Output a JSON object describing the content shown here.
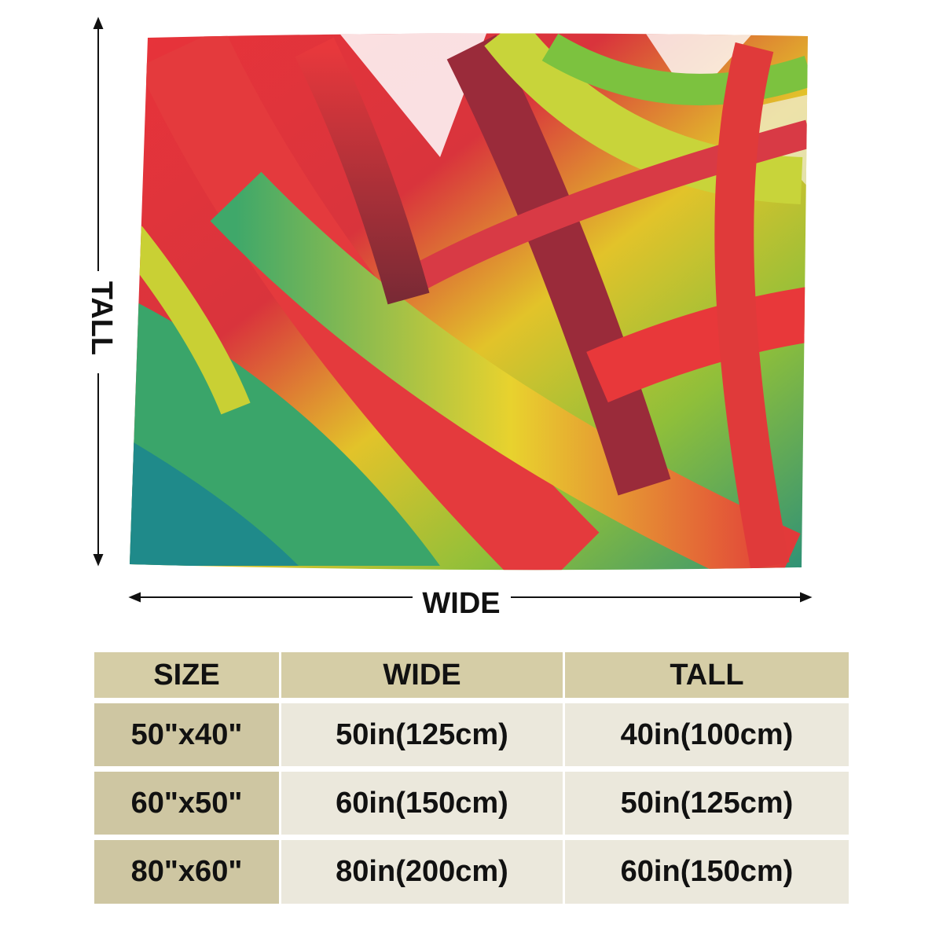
{
  "dimension_labels": {
    "tall": "TALL",
    "wide": "WIDE"
  },
  "table": {
    "header": [
      "SIZE",
      "WIDE",
      "TALL"
    ],
    "rows": [
      [
        "50\"x40\"",
        "50in(125cm)",
        "40in(100cm)"
      ],
      [
        "60\"x50\"",
        "60in(150cm)",
        "50in(125cm)"
      ],
      [
        "80\"x60\"",
        "80in(200cm)",
        "60in(150cm)"
      ]
    ]
  }
}
